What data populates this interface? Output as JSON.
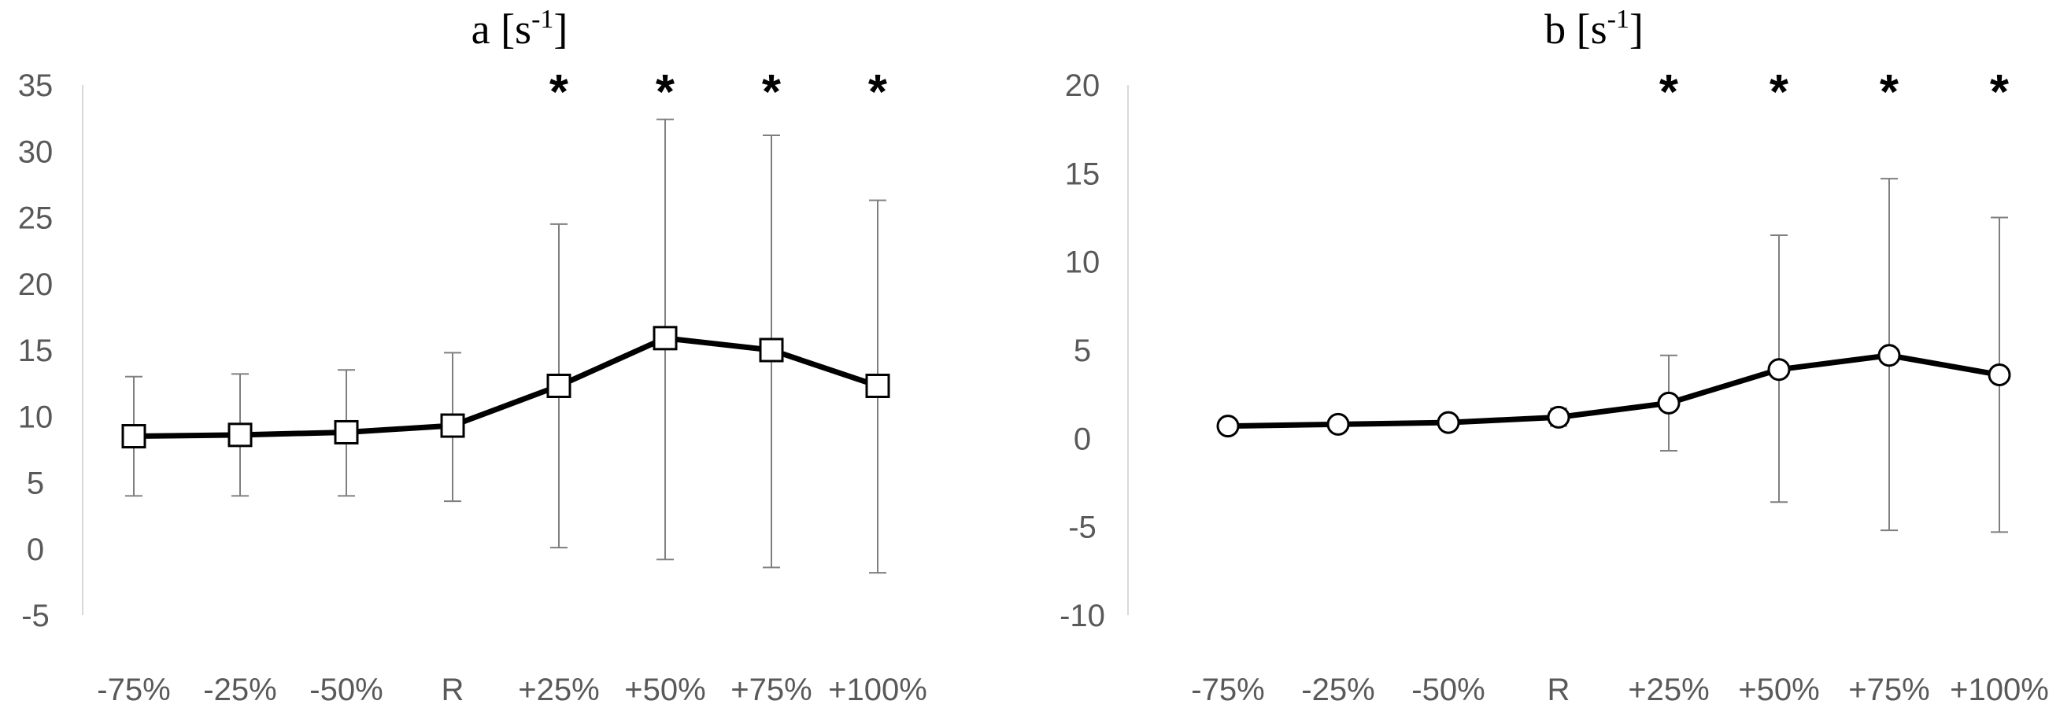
{
  "chart_data": [
    {
      "type": "line",
      "title": "a [s",
      "title_superscript": "-1",
      "title_suffix": "]",
      "categories": [
        "-75%",
        "-25%",
        "-50%",
        "R",
        "+25%",
        "+50%",
        "+75%",
        "+100%"
      ],
      "yticks": [
        "35",
        "30",
        "25",
        "20",
        "15",
        "10",
        "5",
        "0",
        "-5"
      ],
      "ylim": [
        -5,
        35
      ],
      "marker": "square",
      "series": [
        {
          "values": [
            8.5,
            8.6,
            8.8,
            9.3,
            12.3,
            15.9,
            15.0,
            12.3
          ],
          "err_upper": [
            13.0,
            13.2,
            13.5,
            14.8,
            24.5,
            32.4,
            31.2,
            26.3
          ],
          "err_lower": [
            4.0,
            4.0,
            4.0,
            3.6,
            0.1,
            -0.8,
            -1.4,
            -1.8
          ]
        }
      ],
      "significance": [
        "",
        "",
        "",
        "",
        "*",
        "*",
        "*",
        "*"
      ]
    },
    {
      "type": "line",
      "title": "b [s",
      "title_superscript": "-1",
      "title_suffix": "]",
      "categories": [
        "-75%",
        "-25%",
        "-50%",
        "R",
        "+25%",
        "+50%",
        "+75%",
        "+100%"
      ],
      "yticks": [
        "20",
        "15",
        "10",
        "5",
        "0",
        "-5",
        "-10"
      ],
      "ylim": [
        -10,
        20
      ],
      "marker": "circle",
      "series": [
        {
          "values": [
            0.7,
            0.8,
            0.9,
            1.2,
            2.0,
            3.9,
            4.7,
            3.6
          ],
          "err_upper": [
            0.7,
            0.8,
            0.9,
            1.7,
            4.7,
            11.5,
            14.7,
            12.5
          ],
          "err_lower": [
            0.7,
            0.8,
            0.9,
            0.7,
            -0.7,
            -3.6,
            -5.2,
            -5.3
          ]
        }
      ],
      "significance": [
        "",
        "",
        "",
        "",
        "*",
        "*",
        "*",
        "*"
      ]
    }
  ]
}
